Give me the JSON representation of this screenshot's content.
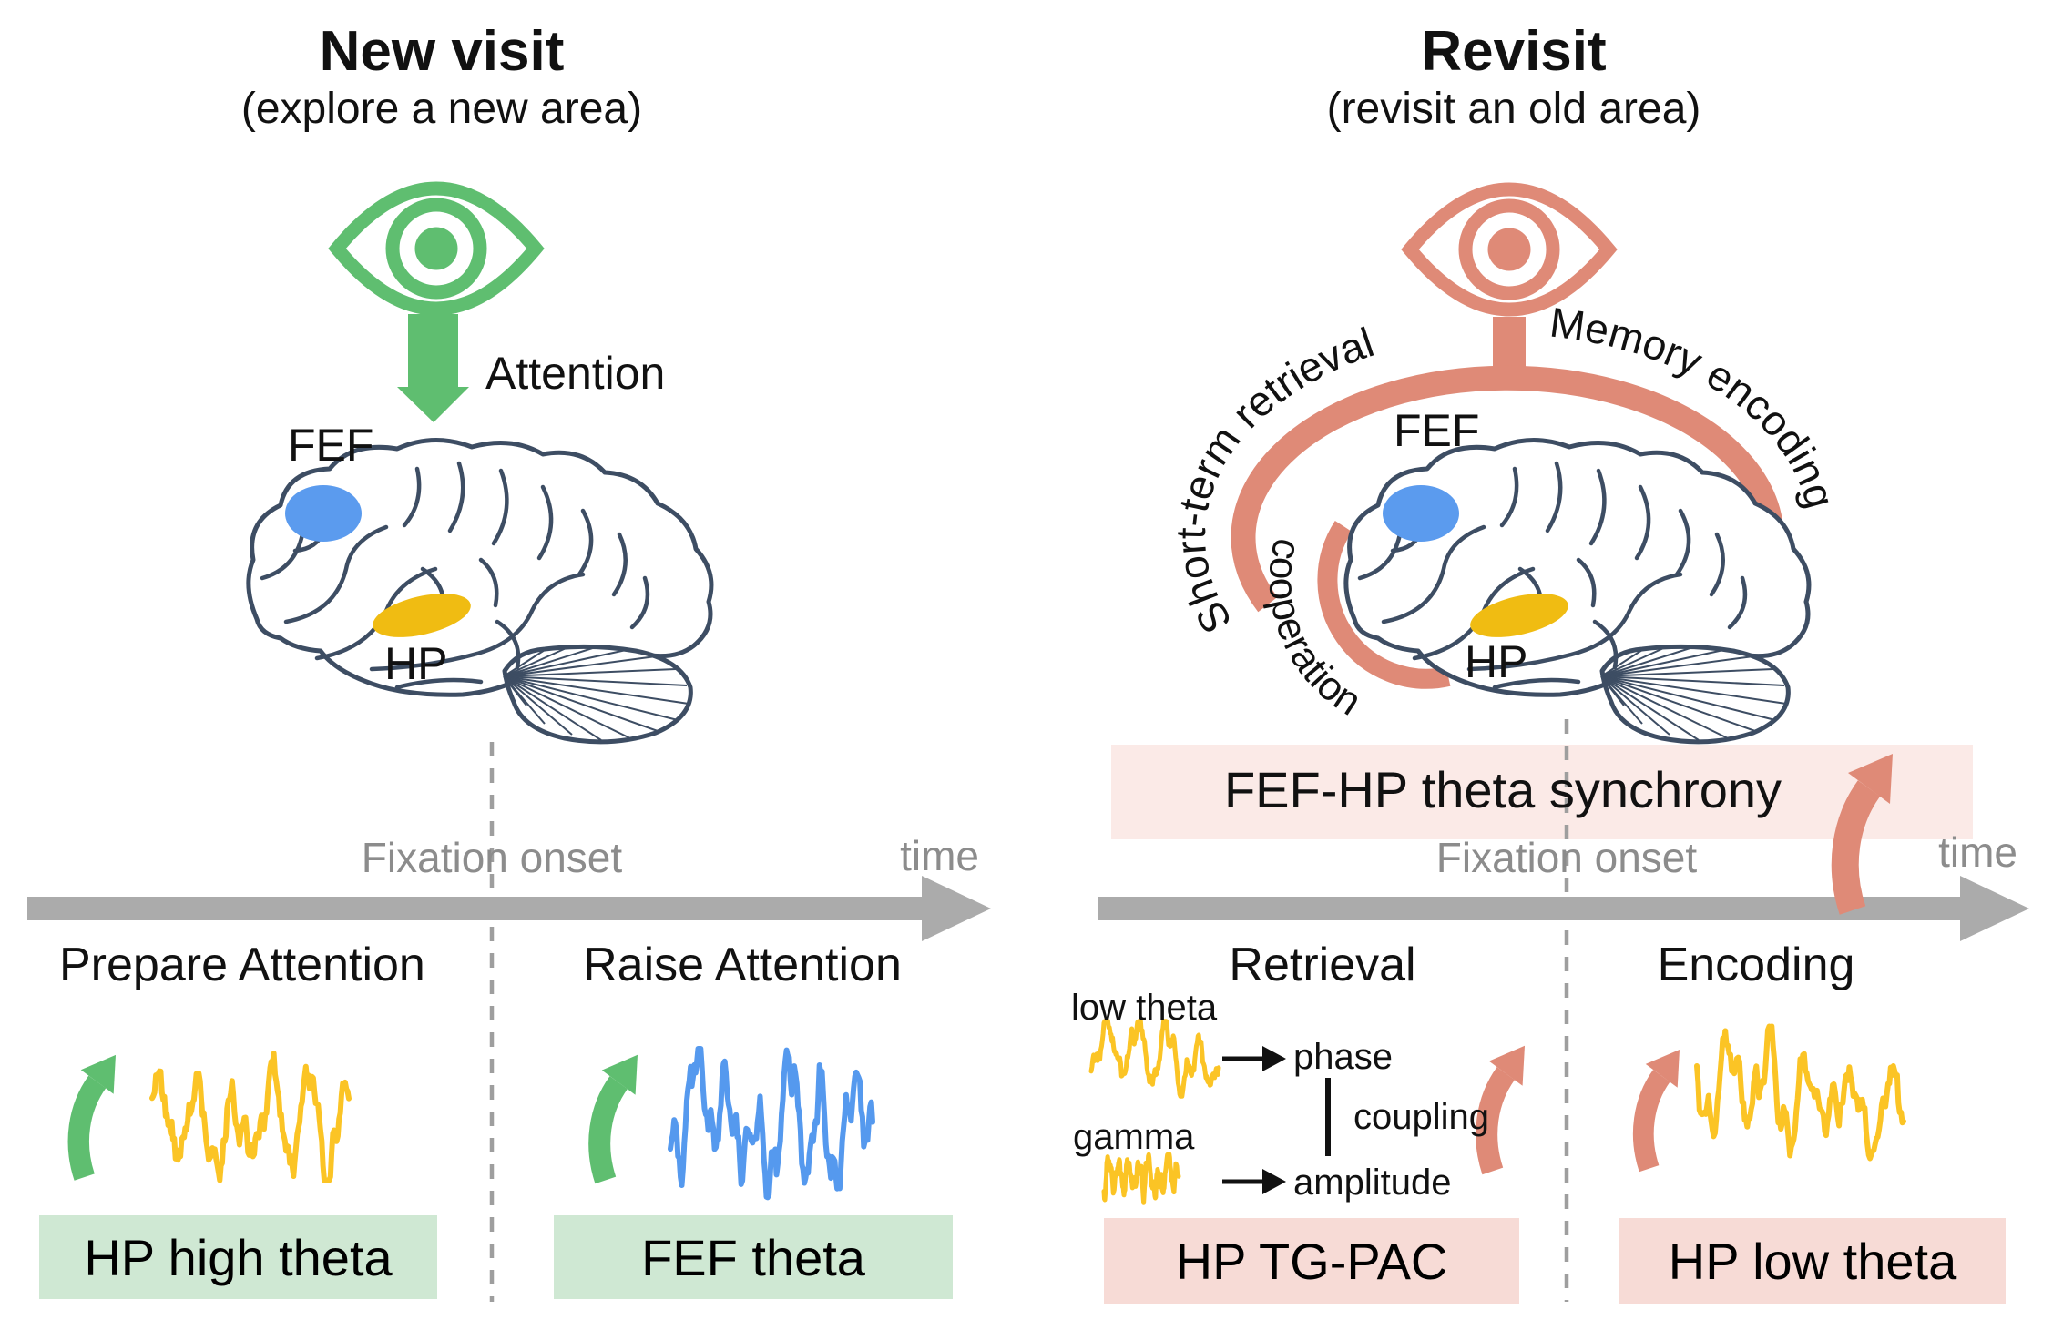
{
  "colors": {
    "green": "#5FBE70",
    "green_light": "#CFE8D3",
    "salmon": "#DF8A77",
    "pink_band": "#FBEAE7",
    "pink_box": "#F7DBD6",
    "blue": "#5B9BEE",
    "blue_wave": "#5599EE",
    "yellow_region": "#F0BC12",
    "yellow_wave": "#FBC425",
    "gray_arrow": "#ABABAB",
    "gray_text": "#8C8C8C",
    "dash": "#9E9E9E",
    "ink": "#3D4D63"
  },
  "left_panel": {
    "title": "New visit",
    "subtitle": "(explore a new area)",
    "attention_label": "Attention",
    "fef_label": "FEF",
    "hp_label": "HP",
    "fixation_label": "Fixation onset",
    "time_label": "time",
    "pre_phase_label": "Prepare Attention",
    "post_phase_label": "Raise Attention",
    "pre_box_label": "HP high theta",
    "post_box_label": "FEF theta"
  },
  "right_panel": {
    "title": "Revisit",
    "subtitle": "(revisit an old area)",
    "arc_left_label": "Short-term retrieval",
    "arc_right_label": "Memory encoding",
    "cooperation_label": "cooperation",
    "fef_label": "FEF",
    "hp_label": "HP",
    "synchrony_band_label": "FEF-HP theta synchrony",
    "fixation_label": "Fixation onset",
    "time_label": "time",
    "pre_phase_label": "Retrieval",
    "post_phase_label": "Encoding",
    "pac": {
      "low_theta_label": "low theta",
      "gamma_label": "gamma",
      "phase_label": "phase",
      "amplitude_label": "amplitude",
      "coupling_label": "coupling"
    },
    "pre_box_label": "HP TG-PAC",
    "post_box_label": "HP low theta"
  },
  "icons": {
    "gaze": "eye-icon",
    "attention": "arrow-down-icon",
    "increase": "curved-up-arrow-icon",
    "timeline": "timeline-arrow-icon",
    "signal_theta": "theta-wave",
    "signal_gamma": "gamma-wave",
    "brain": "brain-illustration"
  }
}
